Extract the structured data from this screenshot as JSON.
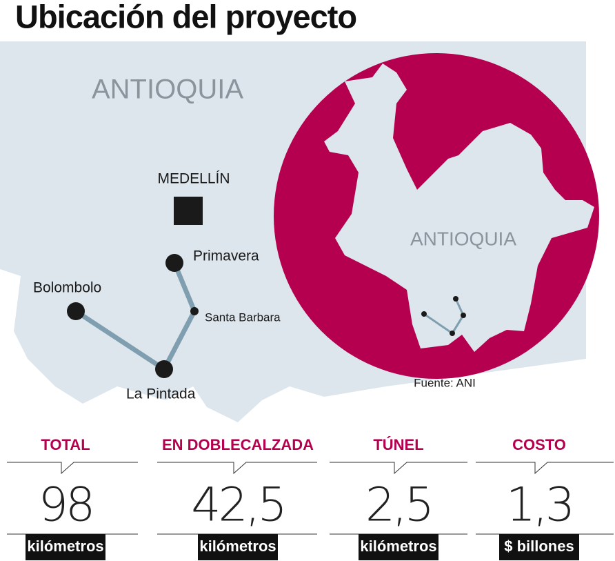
{
  "header": {
    "title": "Ubicación del proyecto"
  },
  "map": {
    "region_label": "ANTIOQUIA",
    "inset_label": "ANTIOQUIA",
    "source": "Fuente: ANI",
    "places": {
      "city": "MEDELLÍN",
      "primavera": "Primavera",
      "santa_barbara": "Santa Barbara",
      "bolombolo": "Bolombolo",
      "la_pintada": "La Pintada"
    }
  },
  "stats": [
    {
      "label": "TOTAL",
      "value": "98",
      "unit": "kilómetros"
    },
    {
      "label": "EN DOBLECALZADA",
      "value": "42,5",
      "unit": "kilómetros"
    },
    {
      "label": "TÚNEL",
      "value": "2,5",
      "unit": "kilómetros"
    },
    {
      "label": "COSTO",
      "value": "1,3",
      "unit": "$ billones"
    }
  ]
}
